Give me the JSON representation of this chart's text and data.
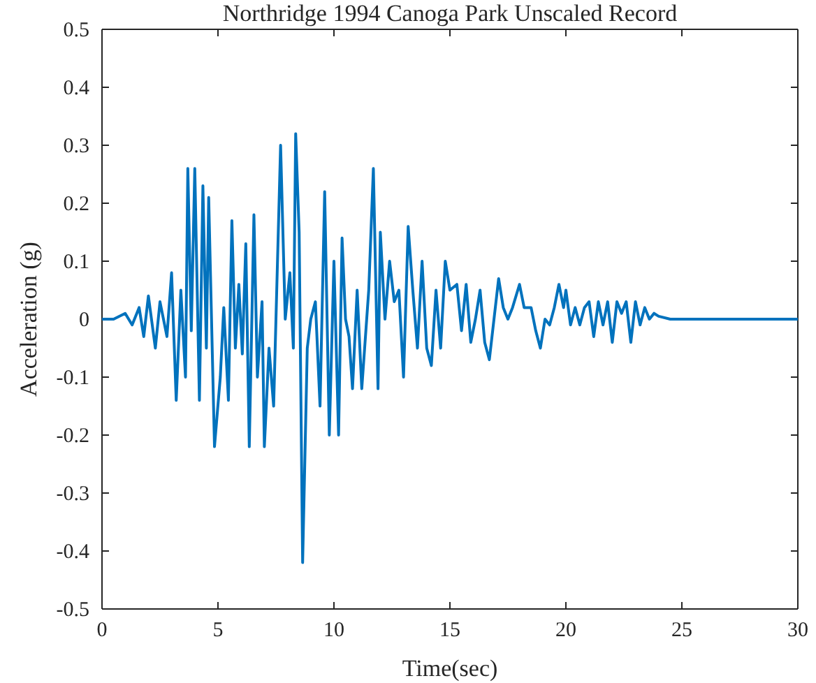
{
  "chart_data": {
    "type": "line",
    "title": "Northridge 1994 Canoga Park Unscaled Record",
    "xlabel": "Time(sec)",
    "ylabel": "Acceleration (g)",
    "xlim": [
      0,
      30
    ],
    "xticks": [
      0,
      5,
      10,
      15,
      20,
      25,
      30
    ],
    "ylim": [
      -0.5,
      0.5
    ],
    "yticks": [
      -0.5,
      -0.4,
      -0.3,
      -0.2,
      -0.1,
      0,
      0.1,
      0.2,
      0.3,
      0.4,
      0.5
    ],
    "grid": false,
    "line_style": "solid",
    "marker": "none",
    "series": [
      {
        "color": "#0072bd",
        "x": [
          0,
          0.5,
          1.0,
          1.3,
          1.6,
          1.8,
          2.0,
          2.3,
          2.5,
          2.8,
          3.0,
          3.2,
          3.4,
          3.6,
          3.7,
          3.85,
          4.0,
          4.2,
          4.35,
          4.5,
          4.6,
          4.85,
          5.1,
          5.25,
          5.45,
          5.6,
          5.75,
          5.9,
          6.05,
          6.2,
          6.35,
          6.55,
          6.7,
          6.9,
          7.0,
          7.2,
          7.4,
          7.7,
          7.9,
          8.1,
          8.25,
          8.35,
          8.5,
          8.65,
          8.85,
          9.0,
          9.2,
          9.4,
          9.6,
          9.8,
          10.0,
          10.2,
          10.35,
          10.5,
          10.65,
          10.8,
          11.0,
          11.2,
          11.5,
          11.7,
          11.9,
          12.0,
          12.2,
          12.4,
          12.6,
          12.8,
          13.0,
          13.2,
          13.4,
          13.6,
          13.8,
          14.0,
          14.2,
          14.4,
          14.6,
          14.8,
          15.0,
          15.3,
          15.5,
          15.7,
          15.9,
          16.1,
          16.3,
          16.5,
          16.7,
          16.9,
          17.1,
          17.3,
          17.5,
          17.7,
          18.0,
          18.2,
          18.5,
          18.7,
          18.9,
          19.1,
          19.3,
          19.5,
          19.7,
          19.9,
          20.0,
          20.2,
          20.4,
          20.6,
          20.8,
          21.0,
          21.2,
          21.4,
          21.6,
          21.8,
          22.0,
          22.2,
          22.4,
          22.6,
          22.8,
          23.0,
          23.2,
          23.4,
          23.6,
          23.8,
          24.0,
          24.5,
          25,
          30
        ],
        "values": [
          0,
          0,
          0.01,
          -0.01,
          0.02,
          -0.03,
          0.04,
          -0.05,
          0.03,
          -0.03,
          0.08,
          -0.14,
          0.05,
          -0.1,
          0.26,
          -0.02,
          0.26,
          -0.14,
          0.23,
          -0.05,
          0.21,
          -0.22,
          -0.1,
          0.02,
          -0.14,
          0.17,
          -0.05,
          0.06,
          -0.06,
          0.13,
          -0.22,
          0.18,
          -0.1,
          0.03,
          -0.22,
          -0.05,
          -0.15,
          0.3,
          0,
          0.08,
          -0.05,
          0.32,
          0.15,
          -0.42,
          -0.05,
          0,
          0.03,
          -0.15,
          0.22,
          -0.2,
          0.1,
          -0.2,
          0.14,
          0,
          -0.03,
          -0.12,
          0.05,
          -0.12,
          0.05,
          0.26,
          -0.12,
          0.15,
          0,
          0.1,
          0.03,
          0.05,
          -0.1,
          0.16,
          0.05,
          -0.05,
          0.1,
          -0.05,
          -0.08,
          0.05,
          -0.05,
          0.1,
          0.05,
          0.06,
          -0.02,
          0.06,
          -0.04,
          0,
          0.05,
          -0.04,
          -0.07,
          0,
          0.07,
          0.02,
          0,
          0.02,
          0.06,
          0.02,
          0.02,
          -0.02,
          -0.05,
          0,
          -0.01,
          0.02,
          0.06,
          0.02,
          0.05,
          -0.01,
          0.02,
          -0.01,
          0.02,
          0.03,
          -0.03,
          0.03,
          -0.01,
          0.03,
          -0.04,
          0.03,
          0.01,
          0.03,
          -0.04,
          0.03,
          -0.01,
          0.02,
          0,
          0.01,
          0.005,
          0,
          0,
          0
        ]
      }
    ]
  }
}
